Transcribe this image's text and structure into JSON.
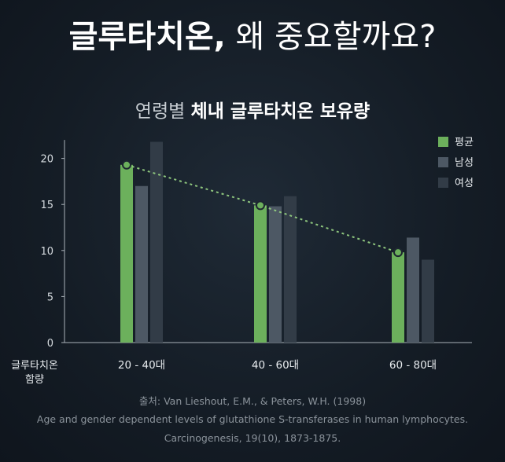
{
  "headline": {
    "bold": "글루타치온,",
    "rest": " 왜 중요할까요?"
  },
  "chart_data": {
    "type": "bar",
    "title_light": "연령별",
    "title_bold": "체내 글루타치온 보유량",
    "xlabel_line1": "글루타치온",
    "xlabel_line2": "함량",
    "categories": [
      "20 - 40대",
      "40 - 60대",
      "60 - 80대"
    ],
    "ylim": [
      0,
      22
    ],
    "yticks": [
      0,
      5,
      10,
      15,
      20
    ],
    "legend_position": "top-right",
    "trend_series": "평균",
    "series": [
      {
        "name": "평균",
        "values": [
          19.3,
          14.9,
          9.8
        ],
        "color": "#6cb05c"
      },
      {
        "name": "남성",
        "values": [
          17.0,
          14.8,
          11.4
        ],
        "color": "#4d5864"
      },
      {
        "name": "여성",
        "values": [
          21.8,
          15.9,
          9.0
        ],
        "color": "#323c47"
      }
    ]
  },
  "source": {
    "line1": "출처: Van Lieshout, E.M., & Peters, W.H. (1998)",
    "line2": "Age and gender dependent levels of glutathione S-transferases in human lymphocytes.",
    "line3": "Carcinogenesis, 19(10), 1873-1875."
  }
}
